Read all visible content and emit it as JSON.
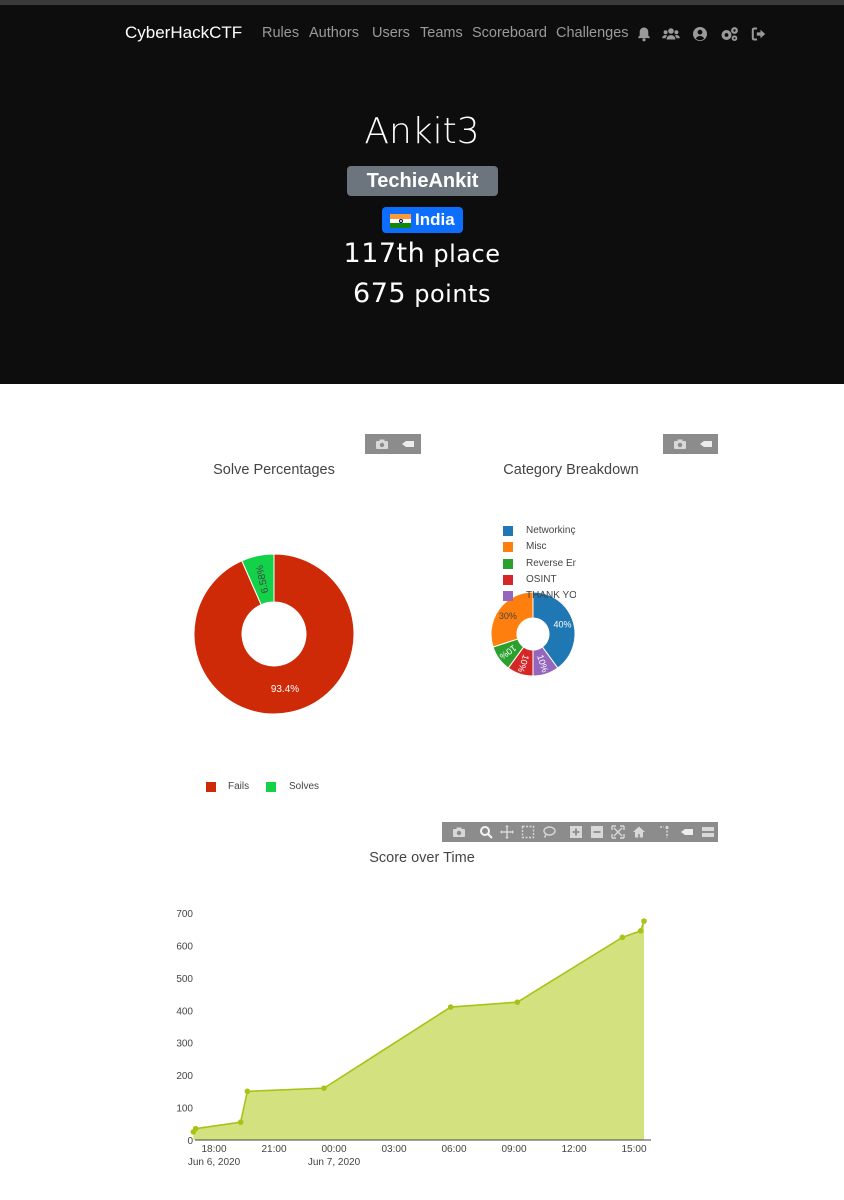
{
  "nav": {
    "brand": "CyberHackCTF",
    "links": [
      "Rules",
      "Authors",
      "Users",
      "Teams",
      "Scoreboard",
      "Challenges"
    ],
    "icons": [
      "bell-icon",
      "users-icon",
      "user-circle-icon",
      "settings-icon",
      "logout-icon"
    ]
  },
  "profile": {
    "name": "Ankit3",
    "affiliation": "TechieAnkit",
    "country": "India",
    "place_number": "117th",
    "place_suffix": "place",
    "points_number": "675",
    "points_suffix": "points"
  },
  "colors": {
    "hero_bg": "#0d0d0d",
    "affiliation_badge": "#6c757d",
    "country_badge": "#0d6efd",
    "fails": "#cf2a08",
    "solves": "#14d14a",
    "score_line": "#a8c317",
    "score_fill": "#d4e17f"
  },
  "solve_chart": {
    "chart_data": {
      "type": "pie",
      "title": "Solve Percentages",
      "labels": [
        "Fails",
        "Solves"
      ],
      "values": [
        93.4,
        6.58
      ],
      "slice_labels": [
        "93.4%",
        "6.58%"
      ],
      "colors": [
        "#cf2a08",
        "#14d14a"
      ],
      "hole": true,
      "legend_position": "bottom"
    }
  },
  "category_chart": {
    "chart_data": {
      "type": "pie",
      "title": "Category Breakdown",
      "labels": [
        "Networking",
        "Misc",
        "Reverse Engineering",
        "OSINT",
        "THANK YOU"
      ],
      "legend_labels": [
        "Networkinç",
        "Misc",
        "Reverse En",
        "OSINT",
        "THANK YO"
      ],
      "values": [
        40,
        30,
        10,
        10,
        10
      ],
      "slice_labels": [
        "40%",
        "30%",
        "10%",
        "10%",
        "10%"
      ],
      "colors": [
        "#1f77b4",
        "#ff7f0e",
        "#2ca02c",
        "#d62728",
        "#9467bd"
      ],
      "hole": true,
      "legend_position": "top-left"
    }
  },
  "score_chart": {
    "chart_data": {
      "type": "area",
      "title": "Score over Time",
      "x": [
        "2020-06-06 16:58",
        "2020-06-06 17:05",
        "2020-06-06 19:20",
        "2020-06-06 19:40",
        "2020-06-06 23:30",
        "2020-06-07 05:50",
        "2020-06-07 09:10",
        "2020-06-07 14:25",
        "2020-06-07 15:20",
        "2020-06-07 15:30"
      ],
      "y": [
        25,
        35,
        55,
        150,
        160,
        410,
        425,
        625,
        645,
        675
      ],
      "x_ticks": [
        "18:00",
        "21:00",
        "00:00",
        "03:00",
        "06:00",
        "09:00",
        "12:00",
        "15:00"
      ],
      "x_tick_dates": {
        "18:00": "Jun 6, 2020",
        "00:00": "Jun 7, 2020"
      },
      "y_ticks": [
        0,
        100,
        200,
        300,
        400,
        500,
        600,
        700
      ],
      "ylim": [
        0,
        700
      ],
      "fill": "tozeroy"
    }
  }
}
